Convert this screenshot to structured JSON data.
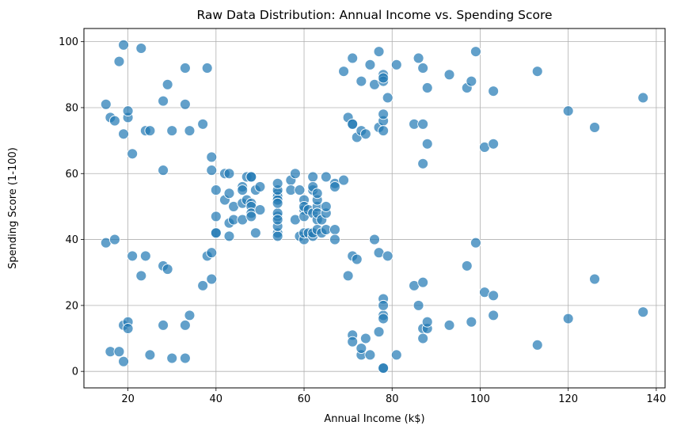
{
  "chart_data": {
    "type": "scatter",
    "title": "Raw Data Distribution: Annual Income vs. Spending Score",
    "xlabel": "Annual Income (k$)",
    "ylabel": "Spending Score (1-100)",
    "xlim": [
      10,
      142
    ],
    "ylim": [
      -5,
      104
    ],
    "xticks": [
      20,
      40,
      60,
      80,
      100,
      120,
      140
    ],
    "yticks": [
      0,
      20,
      40,
      60,
      80,
      100
    ],
    "grid": true,
    "marker_color": "#1f77b4",
    "points": [
      [
        15,
        39
      ],
      [
        15,
        81
      ],
      [
        16,
        6
      ],
      [
        16,
        77
      ],
      [
        17,
        40
      ],
      [
        17,
        76
      ],
      [
        18,
        6
      ],
      [
        18,
        94
      ],
      [
        19,
        3
      ],
      [
        19,
        72
      ],
      [
        19,
        14
      ],
      [
        19,
        99
      ],
      [
        20,
        15
      ],
      [
        20,
        77
      ],
      [
        20,
        13
      ],
      [
        20,
        79
      ],
      [
        21,
        35
      ],
      [
        21,
        66
      ],
      [
        23,
        29
      ],
      [
        23,
        98
      ],
      [
        24,
        35
      ],
      [
        24,
        73
      ],
      [
        25,
        5
      ],
      [
        25,
        73
      ],
      [
        28,
        14
      ],
      [
        28,
        82
      ],
      [
        28,
        32
      ],
      [
        28,
        61
      ],
      [
        29,
        31
      ],
      [
        29,
        87
      ],
      [
        30,
        4
      ],
      [
        30,
        73
      ],
      [
        33,
        4
      ],
      [
        33,
        92
      ],
      [
        33,
        14
      ],
      [
        33,
        81
      ],
      [
        34,
        17
      ],
      [
        34,
        73
      ],
      [
        37,
        26
      ],
      [
        37,
        75
      ],
      [
        38,
        35
      ],
      [
        38,
        92
      ],
      [
        39,
        36
      ],
      [
        39,
        61
      ],
      [
        39,
        28
      ],
      [
        39,
        65
      ],
      [
        40,
        55
      ],
      [
        40,
        47
      ],
      [
        40,
        42
      ],
      [
        40,
        42
      ],
      [
        42,
        52
      ],
      [
        42,
        60
      ],
      [
        43,
        54
      ],
      [
        43,
        60
      ],
      [
        43,
        45
      ],
      [
        43,
        41
      ],
      [
        44,
        50
      ],
      [
        44,
        46
      ],
      [
        46,
        51
      ],
      [
        46,
        46
      ],
      [
        46,
        56
      ],
      [
        46,
        55
      ],
      [
        47,
        52
      ],
      [
        47,
        59
      ],
      [
        48,
        51
      ],
      [
        48,
        59
      ],
      [
        48,
        50
      ],
      [
        48,
        48
      ],
      [
        48,
        59
      ],
      [
        48,
        47
      ],
      [
        49,
        55
      ],
      [
        49,
        42
      ],
      [
        50,
        49
      ],
      [
        50,
        56
      ],
      [
        54,
        47
      ],
      [
        54,
        54
      ],
      [
        54,
        53
      ],
      [
        54,
        48
      ],
      [
        54,
        52
      ],
      [
        54,
        42
      ],
      [
        54,
        51
      ],
      [
        54,
        55
      ],
      [
        54,
        41
      ],
      [
        54,
        44
      ],
      [
        54,
        57
      ],
      [
        54,
        46
      ],
      [
        57,
        58
      ],
      [
        57,
        55
      ],
      [
        58,
        60
      ],
      [
        58,
        46
      ],
      [
        59,
        55
      ],
      [
        59,
        41
      ],
      [
        60,
        49
      ],
      [
        60,
        40
      ],
      [
        60,
        42
      ],
      [
        60,
        52
      ],
      [
        60,
        47
      ],
      [
        60,
        50
      ],
      [
        61,
        42
      ],
      [
        61,
        49
      ],
      [
        62,
        41
      ],
      [
        62,
        48
      ],
      [
        62,
        59
      ],
      [
        62,
        55
      ],
      [
        62,
        56
      ],
      [
        62,
        42
      ],
      [
        63,
        50
      ],
      [
        63,
        46
      ],
      [
        63,
        43
      ],
      [
        63,
        48
      ],
      [
        63,
        52
      ],
      [
        63,
        54
      ],
      [
        64,
        42
      ],
      [
        64,
        46
      ],
      [
        65,
        48
      ],
      [
        65,
        50
      ],
      [
        65,
        43
      ],
      [
        65,
        59
      ],
      [
        67,
        43
      ],
      [
        67,
        57
      ],
      [
        67,
        56
      ],
      [
        67,
        40
      ],
      [
        69,
        58
      ],
      [
        69,
        91
      ],
      [
        70,
        29
      ],
      [
        70,
        77
      ],
      [
        71,
        35
      ],
      [
        71,
        95
      ],
      [
        71,
        11
      ],
      [
        71,
        75
      ],
      [
        71,
        9
      ],
      [
        71,
        75
      ],
      [
        72,
        34
      ],
      [
        72,
        71
      ],
      [
        73,
        5
      ],
      [
        73,
        88
      ],
      [
        73,
        7
      ],
      [
        73,
        73
      ],
      [
        74,
        10
      ],
      [
        74,
        72
      ],
      [
        75,
        5
      ],
      [
        75,
        93
      ],
      [
        76,
        40
      ],
      [
        76,
        87
      ],
      [
        77,
        12
      ],
      [
        77,
        97
      ],
      [
        77,
        36
      ],
      [
        77,
        74
      ],
      [
        78,
        22
      ],
      [
        78,
        90
      ],
      [
        78,
        17
      ],
      [
        78,
        88
      ],
      [
        78,
        20
      ],
      [
        78,
        76
      ],
      [
        78,
        16
      ],
      [
        78,
        89
      ],
      [
        78,
        1
      ],
      [
        78,
        78
      ],
      [
        78,
        1
      ],
      [
        78,
        73
      ],
      [
        79,
        35
      ],
      [
        79,
        83
      ],
      [
        81,
        5
      ],
      [
        81,
        93
      ],
      [
        85,
        26
      ],
      [
        85,
        75
      ],
      [
        86,
        20
      ],
      [
        86,
        95
      ],
      [
        87,
        27
      ],
      [
        87,
        63
      ],
      [
        87,
        13
      ],
      [
        87,
        75
      ],
      [
        87,
        10
      ],
      [
        87,
        92
      ],
      [
        88,
        13
      ],
      [
        88,
        86
      ],
      [
        88,
        15
      ],
      [
        88,
        69
      ],
      [
        93,
        14
      ],
      [
        93,
        90
      ],
      [
        97,
        32
      ],
      [
        97,
        86
      ],
      [
        98,
        15
      ],
      [
        98,
        88
      ],
      [
        99,
        39
      ],
      [
        99,
        97
      ],
      [
        101,
        24
      ],
      [
        101,
        68
      ],
      [
        103,
        17
      ],
      [
        103,
        85
      ],
      [
        103,
        23
      ],
      [
        103,
        69
      ],
      [
        113,
        8
      ],
      [
        113,
        91
      ],
      [
        120,
        16
      ],
      [
        120,
        79
      ],
      [
        126,
        28
      ],
      [
        126,
        74
      ],
      [
        137,
        18
      ],
      [
        137,
        83
      ]
    ]
  }
}
